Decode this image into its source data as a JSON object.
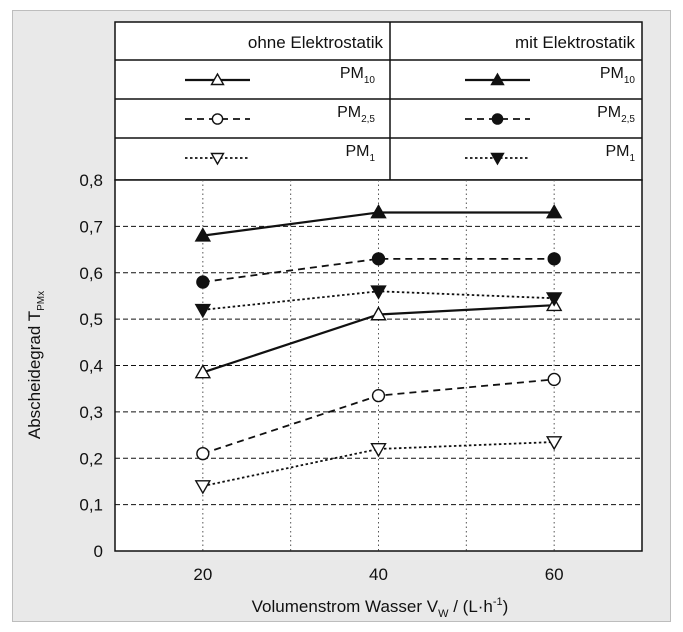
{
  "legend": {
    "col_headers": [
      "ohne Elektrostatik",
      "mit Elektrostatik"
    ],
    "rows": [
      {
        "base": "PM",
        "sub": "10"
      },
      {
        "base": "PM",
        "sub": "2,5"
      },
      {
        "base": "PM",
        "sub": "1"
      }
    ]
  },
  "chart_data": {
    "type": "line",
    "x": [
      20,
      40,
      60
    ],
    "xlabel": {
      "text": "Volumenstrom Wasser V",
      "sub": "W",
      "unit": " / (L·h",
      "sup": "-1",
      "close": ")"
    },
    "ylabel": {
      "text": "Abscheidegrad T",
      "sub": "PMx"
    },
    "ylim": [
      0,
      0.8
    ],
    "xlim": [
      10,
      70
    ],
    "x_ticks": [
      "20",
      "40",
      "60"
    ],
    "y_ticks": [
      "0",
      "0,1",
      "0,2",
      "0,3",
      "0,4",
      "0,5",
      "0,6",
      "0,7",
      "0,8"
    ],
    "grid": "horizontal dashed, vertical dotted",
    "series": [
      {
        "name": "PM10 ohne Elektrostatik",
        "values": [
          0.385,
          0.51,
          0.53
        ],
        "line": "solid",
        "marker": "triangle-up",
        "filled": false
      },
      {
        "name": "PM2,5 ohne Elektrostatik",
        "values": [
          0.21,
          0.335,
          0.37
        ],
        "line": "dashed",
        "marker": "circle",
        "filled": false
      },
      {
        "name": "PM1 ohne Elektrostatik",
        "values": [
          0.14,
          0.22,
          0.235
        ],
        "line": "dotted",
        "marker": "triangle-down",
        "filled": false
      },
      {
        "name": "PM10 mit Elektrostatik",
        "values": [
          0.68,
          0.73,
          0.73
        ],
        "line": "solid",
        "marker": "triangle-up",
        "filled": true
      },
      {
        "name": "PM2,5 mit Elektrostatik",
        "values": [
          0.58,
          0.63,
          0.63
        ],
        "line": "dashed",
        "marker": "circle",
        "filled": true
      },
      {
        "name": "PM1 mit Elektrostatik",
        "values": [
          0.52,
          0.56,
          0.545
        ],
        "line": "dotted",
        "marker": "triangle-down",
        "filled": true
      }
    ],
    "colors": {
      "background": "#e9e9e9",
      "plot": "#ffffff",
      "ink": "#111111"
    }
  }
}
